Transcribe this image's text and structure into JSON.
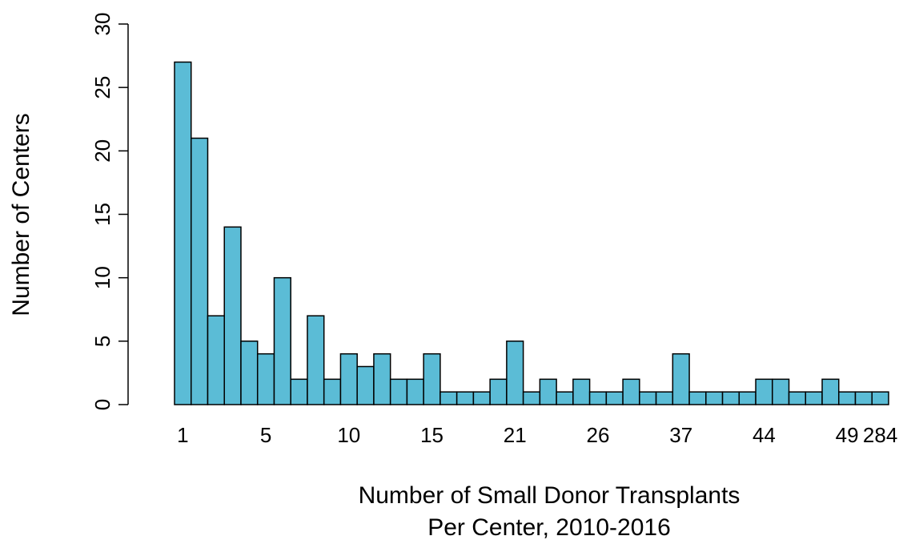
{
  "chart_data": {
    "type": "bar",
    "x_label": [
      "Number of Small Donor Transplants",
      "Per Center, 2010-2016"
    ],
    "y_label": "Number of Centers",
    "categories": [
      "1",
      null,
      null,
      null,
      null,
      "5",
      null,
      null,
      null,
      null,
      "10",
      null,
      null,
      null,
      null,
      "15",
      null,
      null,
      null,
      null,
      "21",
      null,
      null,
      null,
      null,
      "26",
      null,
      null,
      null,
      null,
      "37",
      null,
      null,
      null,
      null,
      "44",
      null,
      null,
      null,
      null,
      "49",
      null,
      "284"
    ],
    "values": [
      27,
      21,
      7,
      14,
      5,
      4,
      10,
      2,
      7,
      2,
      4,
      3,
      4,
      2,
      2,
      4,
      1,
      1,
      1,
      2,
      5,
      1,
      2,
      1,
      2,
      1,
      1,
      2,
      1,
      1,
      4,
      1,
      1,
      1,
      1,
      2,
      2,
      1,
      1,
      2,
      1,
      1,
      1
    ],
    "color": "#5bbcd6",
    "ylim": [
      0,
      30
    ],
    "yticks": [
      0,
      5,
      10,
      15,
      20,
      25,
      30
    ],
    "grid": false
  }
}
